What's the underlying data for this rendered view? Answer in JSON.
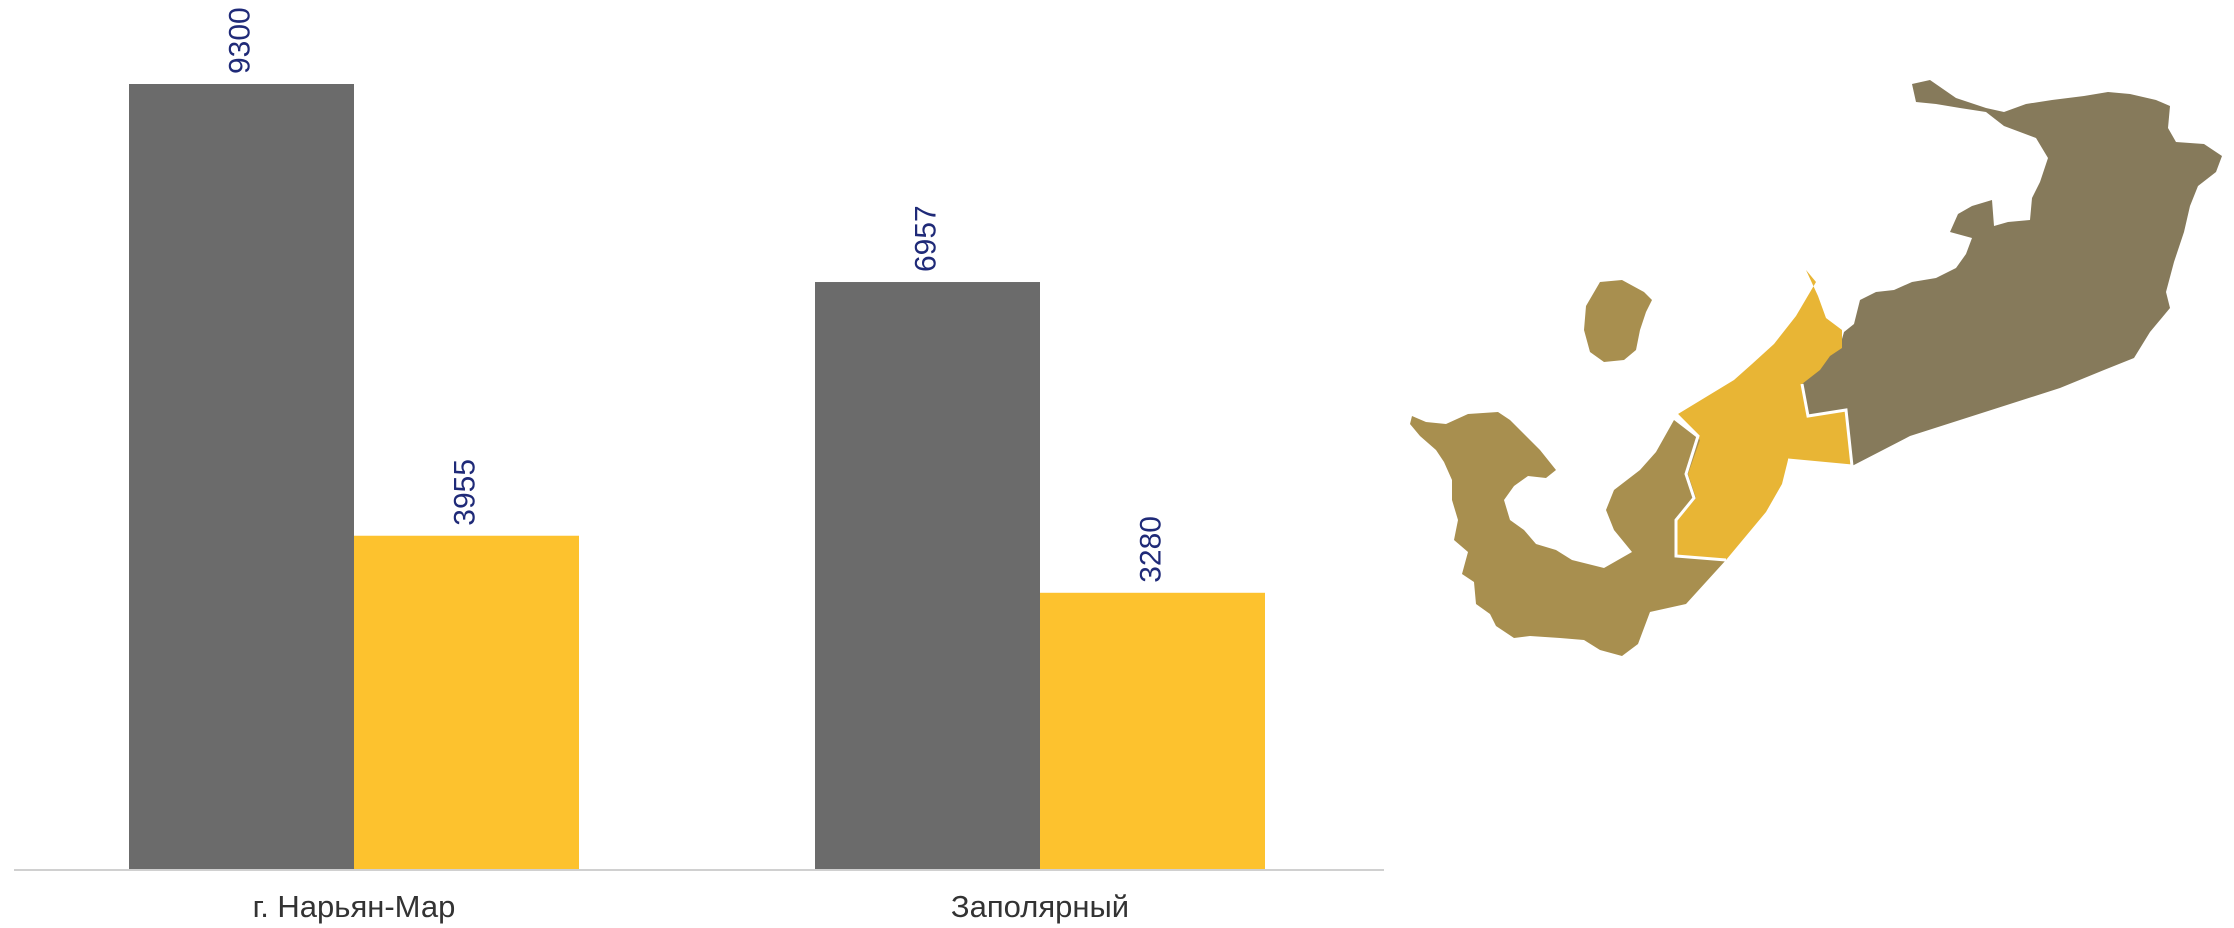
{
  "chart_data": {
    "type": "bar",
    "categories": [
      "г. Нарьян-Мар",
      "Заполярный"
    ],
    "series": [
      {
        "values": [
          9300,
          6957
        ],
        "color": "#6b6b6b"
      },
      {
        "values": [
          3955,
          3280
        ],
        "color": "#fdc22e"
      }
    ],
    "ylim": [
      0,
      9300
    ],
    "grid": false,
    "legend": "none",
    "label_color": "#1f2a78",
    "axis_color": "#d0d0d0"
  },
  "map": {
    "colors": {
      "region_main": "#867a5b",
      "region_west": "#a88f4f",
      "region_highlight": "#e8b535",
      "border": "#ffffff"
    },
    "icon": "region-map-icon"
  }
}
